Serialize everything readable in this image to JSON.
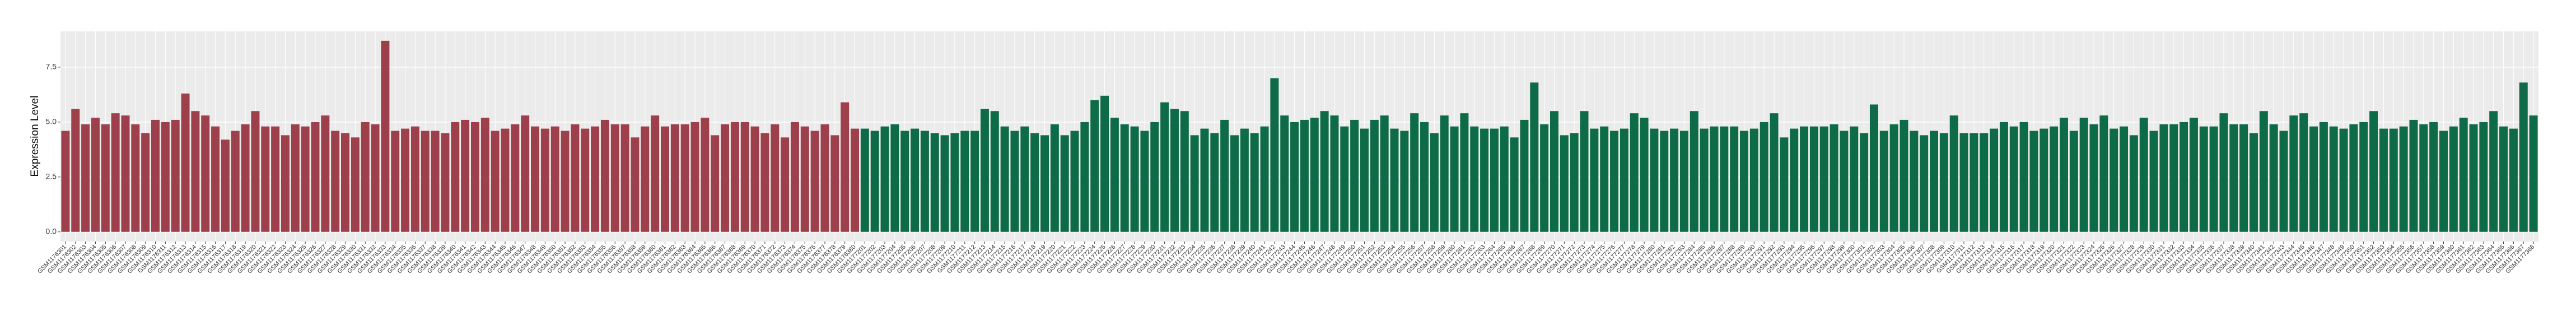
{
  "chart_data": {
    "type": "bar",
    "y_label": "Expression Level",
    "categories": [
      "GSM1176301",
      "GSM1176302",
      "GSM1176303",
      "GSM1176304",
      "GSM1176305",
      "GSM1176306",
      "GSM1176307",
      "GSM1176308",
      "GSM1176309",
      "GSM1176310",
      "GSM1176311",
      "GSM1176312",
      "GSM1176313",
      "GSM1176314",
      "GSM1176315",
      "GSM1176316",
      "GSM1176317",
      "GSM1176318",
      "GSM1176319",
      "GSM1176320",
      "GSM1176321",
      "GSM1176322",
      "GSM1176323",
      "GSM1176324",
      "GSM1176325",
      "GSM1176326",
      "GSM1176327",
      "GSM1176328",
      "GSM1176329",
      "GSM1176330",
      "GSM1176331",
      "GSM1176332",
      "GSM1176333",
      "GSM1176334",
      "GSM1176335",
      "GSM1176336",
      "GSM1176337",
      "GSM1176338",
      "GSM1176339",
      "GSM1176340",
      "GSM1176341",
      "GSM1176342",
      "GSM1176343",
      "GSM1176344",
      "GSM1176345",
      "GSM1176346",
      "GSM1176347",
      "GSM1176348",
      "GSM1176349",
      "GSM1176350",
      "GSM1176351",
      "GSM1176352",
      "GSM1176353",
      "GSM1176354",
      "GSM1176355",
      "GSM1176356",
      "GSM1176357",
      "GSM1176358",
      "GSM1176359",
      "GSM1176360",
      "GSM1176361",
      "GSM1176362",
      "GSM1176363",
      "GSM1176364",
      "GSM1176365",
      "GSM1176366",
      "GSM1176367",
      "GSM1176368",
      "GSM1176369",
      "GSM1176370",
      "GSM1176371",
      "GSM1176372",
      "GSM1176373",
      "GSM1176374",
      "GSM1176375",
      "GSM1176376",
      "GSM1176377",
      "GSM1176378",
      "GSM1176379",
      "GSM1176380",
      "GSM1177201",
      "GSM1177202",
      "GSM1177203",
      "GSM1177204",
      "GSM1177205",
      "GSM1177206",
      "GSM1177207",
      "GSM1177208",
      "GSM1177209",
      "GSM1177210",
      "GSM1177211",
      "GSM1177212",
      "GSM1177213",
      "GSM1177214",
      "GSM1177215",
      "GSM1177216",
      "GSM1177217",
      "GSM1177218",
      "GSM1177219",
      "GSM1177220",
      "GSM1177221",
      "GSM1177222",
      "GSM1177223",
      "GSM1177224",
      "GSM1177225",
      "GSM1177226",
      "GSM1177227",
      "GSM1177228",
      "GSM1177229",
      "GSM1177230",
      "GSM1177231",
      "GSM1177232",
      "GSM1177233",
      "GSM1177234",
      "GSM1177235",
      "GSM1177236",
      "GSM1177237",
      "GSM1177238",
      "GSM1177239",
      "GSM1177240",
      "GSM1177241",
      "GSM1177242",
      "GSM1177243",
      "GSM1177244",
      "GSM1177245",
      "GSM1177246",
      "GSM1177247",
      "GSM1177248",
      "GSM1177249",
      "GSM1177250",
      "GSM1177251",
      "GSM1177252",
      "GSM1177253",
      "GSM1177254",
      "GSM1177255",
      "GSM1177256",
      "GSM1177257",
      "GSM1177258",
      "GSM1177259",
      "GSM1177260",
      "GSM1177261",
      "GSM1177262",
      "GSM1177263",
      "GSM1177264",
      "GSM1177265",
      "GSM1177266",
      "GSM1177267",
      "GSM1177268",
      "GSM1177269",
      "GSM1177270",
      "GSM1177271",
      "GSM1177272",
      "GSM1177273",
      "GSM1177274",
      "GSM1177275",
      "GSM1177276",
      "GSM1177277",
      "GSM1177278",
      "GSM1177279",
      "GSM1177280",
      "GSM1177281",
      "GSM1177282",
      "GSM1177283",
      "GSM1177284",
      "GSM1177285",
      "GSM1177286",
      "GSM1177287",
      "GSM1177288",
      "GSM1177289",
      "GSM1177290",
      "GSM1177291",
      "GSM1177292",
      "GSM1177293",
      "GSM1177294",
      "GSM1177295",
      "GSM1177296",
      "GSM1177297",
      "GSM1177298",
      "GSM1177299",
      "GSM1177300",
      "GSM1177301",
      "GSM1177302",
      "GSM1177303",
      "GSM1177304",
      "GSM1177305",
      "GSM1177306",
      "GSM1177307",
      "GSM1177308",
      "GSM1177309",
      "GSM1177310",
      "GSM1177311",
      "GSM1177312",
      "GSM1177313",
      "GSM1177314",
      "GSM1177315",
      "GSM1177316",
      "GSM1177317",
      "GSM1177318",
      "GSM1177319",
      "GSM1177320",
      "GSM1177321",
      "GSM1177322",
      "GSM1177323",
      "GSM1177324",
      "GSM1177325",
      "GSM1177326",
      "GSM1177327",
      "GSM1177328",
      "GSM1177329",
      "GSM1177330",
      "GSM1177331",
      "GSM1177332",
      "GSM1177333",
      "GSM1177334",
      "GSM1177335",
      "GSM1177336",
      "GSM1177337",
      "GSM1177338",
      "GSM1177339",
      "GSM1177340",
      "GSM1177341",
      "GSM1177342",
      "GSM1177343",
      "GSM1177344",
      "GSM1177345",
      "GSM1177346",
      "GSM1177347",
      "GSM1177348",
      "GSM1177349",
      "GSM1177350",
      "GSM1177351",
      "GSM1177352",
      "GSM1177353",
      "GSM1177354",
      "GSM1177355",
      "GSM1177356",
      "GSM1177357",
      "GSM1177358",
      "GSM1177359",
      "GSM1177360",
      "GSM1177361",
      "GSM1177362",
      "GSM1177363",
      "GSM1177364",
      "GSM1177365",
      "GSM1177366",
      "GSM1177367",
      "GSM1177368"
    ],
    "series": [
      {
        "color": "#9e3f4c",
        "values": [
          4.6,
          5.6,
          4.9,
          5.2,
          4.9,
          5.4,
          5.3,
          4.9,
          4.5,
          5.1,
          5.0,
          5.1,
          6.3,
          5.5,
          5.3,
          4.8,
          4.2,
          4.6,
          4.9,
          5.5,
          4.8,
          4.8,
          4.4,
          4.9,
          4.8,
          5.0,
          5.3,
          4.6,
          4.5,
          4.3,
          5.0,
          4.9,
          8.7,
          4.6,
          4.7,
          4.8,
          4.6,
          4.6,
          4.5,
          5.0,
          5.1,
          5.0,
          5.2,
          4.6,
          4.7,
          4.9,
          5.3,
          4.8,
          4.7,
          4.8,
          4.6,
          4.9,
          4.7,
          4.8,
          5.1,
          4.9,
          4.9,
          4.3,
          4.8,
          5.3,
          4.8,
          4.9,
          4.9,
          5.0,
          5.2,
          4.4,
          4.9,
          5.0,
          5.0,
          4.8,
          4.5,
          4.9,
          4.3,
          5.0,
          4.8,
          4.6,
          4.9,
          4.4,
          5.9,
          4.7,
          null,
          null,
          null,
          null,
          null,
          null,
          null,
          null,
          null,
          null,
          null,
          null,
          null,
          null,
          null,
          null,
          null,
          null,
          null,
          null,
          null,
          null,
          null,
          null,
          null,
          null,
          null,
          null,
          null,
          null,
          null,
          null,
          null,
          null,
          null,
          null,
          null,
          null,
          null,
          null,
          null,
          null,
          null,
          null,
          null,
          null,
          null,
          null,
          null,
          null,
          null,
          null,
          null,
          null,
          null,
          null,
          null,
          null,
          null,
          null,
          null,
          null,
          null,
          null,
          null,
          null,
          null,
          null,
          null,
          null,
          null,
          null,
          null,
          null,
          null,
          null,
          null,
          null,
          null,
          null,
          null,
          null,
          null,
          null,
          null,
          null,
          null,
          null,
          null,
          null,
          null,
          null,
          null,
          null,
          null,
          null,
          null,
          null,
          null,
          null,
          null,
          null,
          null,
          null,
          null,
          null,
          null,
          null,
          null,
          null,
          null,
          null,
          null,
          null,
          null,
          null,
          null,
          null,
          null,
          null,
          null,
          null,
          null,
          null,
          null,
          null,
          null,
          null,
          null,
          null,
          null,
          null,
          null,
          null,
          null,
          null,
          null,
          null,
          null,
          null,
          null,
          null,
          null,
          null,
          null,
          null,
          null,
          null,
          null,
          null,
          null,
          null,
          null,
          null,
          null,
          null,
          null,
          null,
          null,
          null,
          null,
          null,
          null,
          null,
          null,
          null,
          null,
          null
        ]
      },
      {
        "color": "#0e6b47",
        "values": [
          null,
          null,
          null,
          null,
          null,
          null,
          null,
          null,
          null,
          null,
          null,
          null,
          null,
          null,
          null,
          null,
          null,
          null,
          null,
          null,
          null,
          null,
          null,
          null,
          null,
          null,
          null,
          null,
          null,
          null,
          null,
          null,
          null,
          null,
          null,
          null,
          null,
          null,
          null,
          null,
          null,
          null,
          null,
          null,
          null,
          null,
          null,
          null,
          null,
          null,
          null,
          null,
          null,
          null,
          null,
          null,
          null,
          null,
          null,
          null,
          null,
          null,
          null,
          null,
          null,
          null,
          null,
          null,
          null,
          null,
          null,
          null,
          null,
          null,
          null,
          null,
          null,
          null,
          null,
          null,
          4.7,
          4.6,
          4.8,
          4.9,
          4.6,
          4.7,
          4.6,
          4.5,
          4.4,
          4.5,
          4.6,
          4.6,
          5.6,
          5.5,
          4.8,
          4.6,
          4.8,
          4.5,
          4.4,
          4.9,
          4.4,
          4.6,
          5.0,
          6.0,
          6.2,
          5.2,
          4.9,
          4.8,
          4.6,
          5.0,
          5.9,
          5.6,
          5.5,
          4.4,
          4.7,
          4.5,
          5.1,
          4.4,
          4.7,
          4.5,
          4.8,
          7.0,
          5.3,
          5.0,
          5.1,
          5.2,
          5.5,
          5.3,
          4.8,
          5.1,
          4.7,
          5.1,
          5.3,
          4.7,
          4.6,
          5.4,
          5.0,
          4.5,
          5.3,
          4.8,
          5.4,
          4.8,
          4.7,
          4.7,
          4.8,
          4.3,
          5.1,
          6.8,
          4.9,
          5.5,
          4.4,
          4.5,
          5.5,
          4.7,
          4.8,
          4.6,
          4.7,
          5.4,
          5.2,
          4.7,
          4.6,
          4.7,
          4.6,
          5.5,
          4.7,
          4.8,
          4.8,
          4.8,
          4.6,
          4.7,
          5.0,
          5.4,
          4.3,
          4.7,
          4.8,
          4.8,
          4.8,
          4.9,
          4.6,
          4.8,
          4.5,
          5.8,
          4.6,
          4.9,
          5.1,
          4.6,
          4.4,
          4.6,
          4.5,
          5.3,
          4.5,
          4.5,
          4.5,
          4.7,
          5.0,
          4.8,
          5.0,
          4.6,
          4.7,
          4.8,
          5.2,
          4.6,
          5.2,
          4.9,
          5.3,
          4.7,
          4.8,
          4.4,
          5.2,
          4.6,
          4.9,
          4.9,
          5.0,
          5.2,
          4.8,
          4.8,
          5.4,
          4.9,
          4.9,
          4.5,
          5.5,
          4.9,
          4.6,
          5.3,
          5.4,
          4.8,
          5.0,
          4.8,
          4.7,
          4.9,
          5.0,
          5.5,
          4.7,
          4.7,
          4.8,
          5.1,
          4.9,
          5.0,
          4.6,
          4.8,
          5.2,
          4.9,
          5.0,
          5.5,
          4.8,
          4.7,
          6.8,
          5.3
        ]
      }
    ],
    "ylim": [
      -0.44,
      9.13
    ],
    "yticks": [
      {
        "value": 0,
        "label": "0.0"
      },
      {
        "value": 2.5,
        "label": "2.5"
      },
      {
        "value": 5,
        "label": "5.0"
      },
      {
        "value": 7.5,
        "label": "7.5"
      }
    ],
    "grid": true,
    "panel_color": "#ebebeb"
  }
}
